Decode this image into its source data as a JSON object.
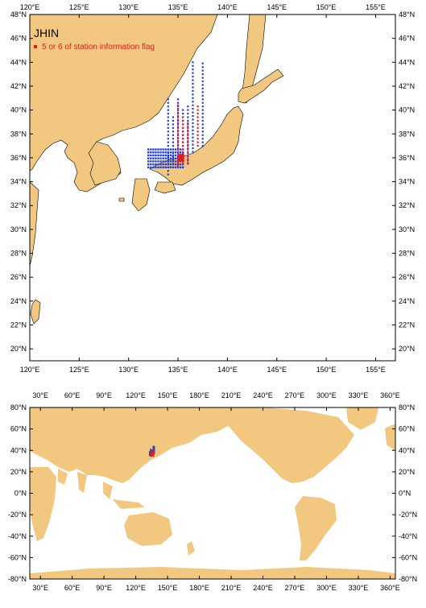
{
  "title": "JHIN",
  "legend": {
    "label": "5 or 6 of station information flag",
    "color": "#e0201e"
  },
  "colors": {
    "land": "#f2c880",
    "station": "#1f3fd6",
    "flagged": "#e0201e",
    "water": "#ffffff"
  },
  "regional_map": {
    "lon_range": [
      120,
      157
    ],
    "lat_range": [
      19,
      48
    ],
    "lon_ticks": [
      "120°E",
      "125°E",
      "130°E",
      "135°E",
      "140°E",
      "145°E",
      "150°E",
      "155°E"
    ],
    "lat_ticks": [
      "20°N",
      "22°N",
      "24°N",
      "26°N",
      "28°N",
      "30°N",
      "32°N",
      "34°N",
      "36°N",
      "38°N",
      "40°N",
      "42°N",
      "44°N",
      "46°N",
      "48°N"
    ]
  },
  "global_map": {
    "lon_range": [
      20,
      365
    ],
    "lat_range": [
      -80,
      80
    ],
    "lon_ticks": [
      "30°E",
      "60°E",
      "90°E",
      "120°E",
      "150°E",
      "180°E",
      "210°E",
      "240°E",
      "270°E",
      "300°E",
      "330°E",
      "360°E"
    ],
    "lat_ticks": [
      "80°N",
      "60°N",
      "40°N",
      "20°N",
      "0°N",
      "-20°N",
      "-40°N",
      "-60°N",
      "-80°N"
    ]
  },
  "stations": {
    "blue_columns": [
      {
        "lon": 134.0,
        "lat_from": 34.6,
        "lat_to": 41.0
      },
      {
        "lon": 134.5,
        "lat_from": 35.5,
        "lat_to": 39.5
      },
      {
        "lon": 135.0,
        "lat_from": 35.5,
        "lat_to": 41.0
      },
      {
        "lon": 135.5,
        "lat_from": 35.5,
        "lat_to": 40.0
      },
      {
        "lon": 136.0,
        "lat_from": 35.5,
        "lat_to": 40.5
      },
      {
        "lon": 136.5,
        "lat_from": 36.5,
        "lat_to": 44.0
      },
      {
        "lon": 137.5,
        "lat_from": 37.0,
        "lat_to": 44.0
      }
    ],
    "blue_cluster": {
      "lon_from": 132.0,
      "lon_to": 135.5,
      "lat_from": 35.2,
      "lat_to": 36.8
    },
    "red_columns": [
      {
        "lon": 135.0,
        "lat_from": 35.3,
        "lat_to": 40.5
      },
      {
        "lon": 135.5,
        "lat_from": 35.5,
        "lat_to": 39.5
      },
      {
        "lon": 136.0,
        "lat_from": 35.6,
        "lat_to": 39.0
      },
      {
        "lon": 137.0,
        "lat_from": 37.0,
        "lat_to": 40.5
      }
    ]
  }
}
